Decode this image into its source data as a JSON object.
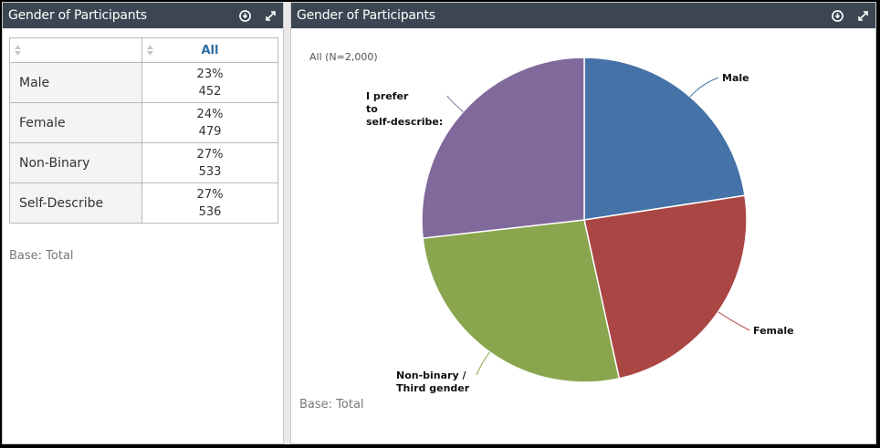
{
  "left_panel": {
    "title": "Gender of Participants",
    "column_header": "All",
    "rows": [
      {
        "label": "Male",
        "percent": "23%",
        "count": "452"
      },
      {
        "label": "Female",
        "percent": "24%",
        "count": "479"
      },
      {
        "label": "Non-Binary",
        "percent": "27%",
        "count": "533"
      },
      {
        "label": "Self-Describe",
        "percent": "27%",
        "count": "536"
      }
    ],
    "base_note": "Base: Total"
  },
  "right_panel": {
    "title": "Gender of Participants",
    "base_note": "Base: Total"
  },
  "icons": {
    "download": "download-icon",
    "expand": "expand-icon",
    "sort": "sort-icon"
  },
  "chart_data": {
    "type": "pie",
    "subtitle": "All (N=2,000)",
    "slices": [
      {
        "label": "Male",
        "value": 452,
        "percent": 23,
        "color": "#4572a7"
      },
      {
        "label": "Female",
        "value": 479,
        "percent": 24,
        "color": "#aa4643"
      },
      {
        "label": "Non-binary / Third gender",
        "value": 533,
        "percent": 27,
        "color": "#89a54e"
      },
      {
        "label": "I prefer to self-describe:",
        "value": 536,
        "percent": 27,
        "color": "#80699b"
      }
    ],
    "legend": "none"
  }
}
